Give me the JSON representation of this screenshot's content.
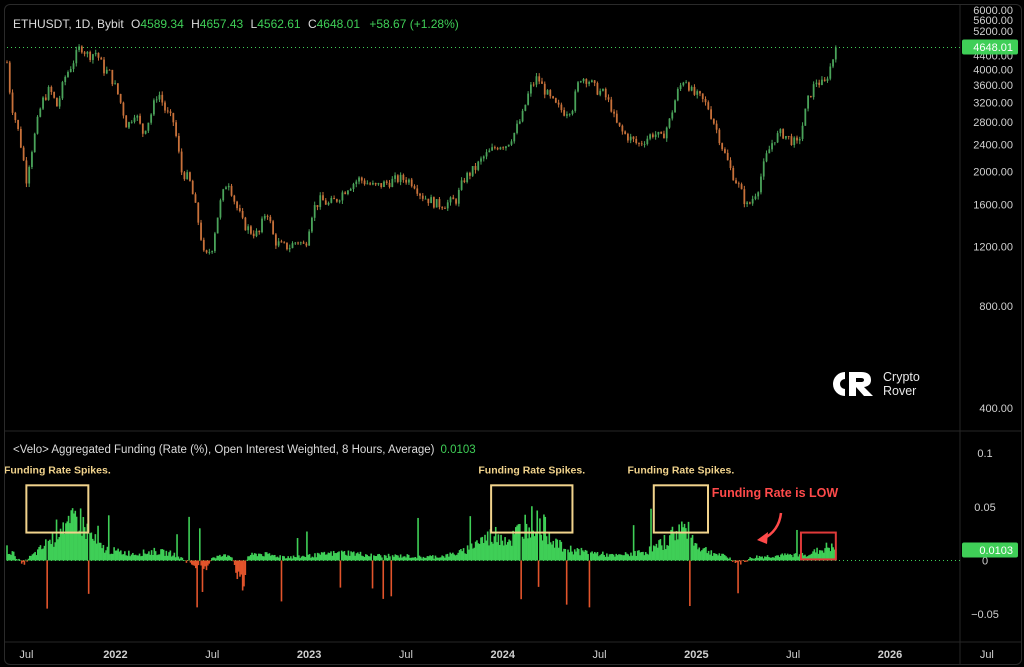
{
  "header": {
    "symbol": "ETHUSDT, 1D, Bybit",
    "o_label": "O",
    "o": "4589.34",
    "h_label": "H",
    "h": "4657.43",
    "l_label": "L",
    "l": "4562.61",
    "c_label": "C",
    "c": "4648.01",
    "change": "+58.67 (+1.28%)"
  },
  "indicator": {
    "title": "<Velo> Aggregated Funding (Rate (%), Open Interest Weighted, 8 Hours, Average)",
    "value": "0.0103"
  },
  "brand": {
    "line1": "Crypto",
    "line2": "Rover"
  },
  "colors": {
    "up": "#3fcf57",
    "down": "#e2542b",
    "annotation_box": "#f1d38c",
    "low_box": "#e03a3a",
    "low_text": "#ff4a4a"
  },
  "chart_data": [
    {
      "type": "candlestick",
      "title": "ETHUSDT, 1D, Bybit",
      "y_ticks": [
        "6000.00",
        "5600.00",
        "5200.00",
        "4800.00",
        "4400.00",
        "4000.00",
        "3600.00",
        "3200.00",
        "2800.00",
        "2400.00",
        "2000.00",
        "1600.00",
        "1200.00",
        "800.00",
        "400.00"
      ],
      "ylim": [
        400,
        6000
      ],
      "last_price": "4648.01",
      "x_ticks": [
        "Jul",
        "2022",
        "Jul",
        "2023",
        "Jul",
        "2024",
        "Jul",
        "2025",
        "Jul",
        "2026",
        "Jul"
      ],
      "price_path": [
        [
          2021.44,
          4200
        ],
        [
          2021.46,
          3200
        ],
        [
          2021.5,
          2600
        ],
        [
          2021.54,
          1900
        ],
        [
          2021.58,
          2500
        ],
        [
          2021.62,
          3200
        ],
        [
          2021.66,
          3500
        ],
        [
          2021.7,
          3100
        ],
        [
          2021.74,
          3800
        ],
        [
          2021.78,
          4200
        ],
        [
          2021.82,
          4700
        ],
        [
          2021.86,
          4400
        ],
        [
          2021.9,
          4500
        ],
        [
          2021.94,
          4000
        ],
        [
          2021.97,
          3900
        ],
        [
          2022.02,
          3300
        ],
        [
          2022.06,
          2700
        ],
        [
          2022.1,
          3000
        ],
        [
          2022.14,
          2600
        ],
        [
          2022.18,
          2900
        ],
        [
          2022.22,
          3450
        ],
        [
          2022.26,
          3000
        ],
        [
          2022.3,
          2800
        ],
        [
          2022.34,
          2000
        ],
        [
          2022.38,
          1900
        ],
        [
          2022.42,
          1500
        ],
        [
          2022.46,
          1100
        ],
        [
          2022.5,
          1200
        ],
        [
          2022.54,
          1600
        ],
        [
          2022.58,
          1900
        ],
        [
          2022.62,
          1600
        ],
        [
          2022.66,
          1400
        ],
        [
          2022.7,
          1330
        ],
        [
          2022.74,
          1300
        ],
        [
          2022.78,
          1550
        ],
        [
          2022.82,
          1250
        ],
        [
          2022.86,
          1200
        ],
        [
          2022.9,
          1200
        ],
        [
          2022.94,
          1250
        ],
        [
          2022.98,
          1200
        ],
        [
          2023.02,
          1550
        ],
        [
          2023.06,
          1650
        ],
        [
          2023.1,
          1600
        ],
        [
          2023.14,
          1650
        ],
        [
          2023.2,
          1800
        ],
        [
          2023.26,
          1900
        ],
        [
          2023.3,
          1850
        ],
        [
          2023.34,
          1800
        ],
        [
          2023.4,
          1850
        ],
        [
          2023.46,
          1900
        ],
        [
          2023.5,
          1900
        ],
        [
          2023.54,
          1850
        ],
        [
          2023.58,
          1700
        ],
        [
          2023.62,
          1650
        ],
        [
          2023.66,
          1600
        ],
        [
          2023.7,
          1600
        ],
        [
          2023.76,
          1650
        ],
        [
          2023.8,
          1900
        ],
        [
          2023.86,
          2050
        ],
        [
          2023.9,
          2200
        ],
        [
          2023.94,
          2300
        ],
        [
          2023.98,
          2400
        ],
        [
          2024.02,
          2400
        ],
        [
          2024.06,
          2600
        ],
        [
          2024.1,
          2900
        ],
        [
          2024.14,
          3500
        ],
        [
          2024.18,
          3800
        ],
        [
          2024.2,
          3600
        ],
        [
          2024.24,
          3300
        ],
        [
          2024.28,
          3100
        ],
        [
          2024.32,
          3000
        ],
        [
          2024.36,
          3100
        ],
        [
          2024.4,
          3800
        ],
        [
          2024.44,
          3750
        ],
        [
          2024.48,
          3500
        ],
        [
          2024.52,
          3400
        ],
        [
          2024.56,
          3100
        ],
        [
          2024.58,
          2800
        ],
        [
          2024.62,
          2600
        ],
        [
          2024.66,
          2500
        ],
        [
          2024.7,
          2400
        ],
        [
          2024.74,
          2500
        ],
        [
          2024.78,
          2600
        ],
        [
          2024.82,
          2500
        ],
        [
          2024.86,
          2800
        ],
        [
          2024.9,
          3400
        ],
        [
          2024.94,
          3800
        ],
        [
          2024.98,
          3400
        ],
        [
          2025.02,
          3300
        ],
        [
          2025.06,
          3100
        ],
        [
          2025.1,
          2700
        ],
        [
          2025.14,
          2300
        ],
        [
          2025.18,
          2000
        ],
        [
          2025.22,
          1800
        ],
        [
          2025.26,
          1580
        ],
        [
          2025.28,
          1620
        ],
        [
          2025.32,
          1800
        ],
        [
          2025.36,
          2200
        ],
        [
          2025.4,
          2500
        ],
        [
          2025.44,
          2600
        ],
        [
          2025.48,
          2500
        ],
        [
          2025.52,
          2400
        ],
        [
          2025.54,
          2600
        ],
        [
          2025.58,
          3300
        ],
        [
          2025.62,
          3700
        ],
        [
          2025.66,
          3600
        ],
        [
          2025.7,
          4200
        ],
        [
          2025.72,
          4648
        ]
      ]
    },
    {
      "type": "bar",
      "title": "<Velo> Aggregated Funding (Rate (%), Open Interest Weighted, 8 Hours, Average)",
      "y_ticks": [
        "0.1",
        "0.05",
        "0",
        "−0.05"
      ],
      "ylim": [
        -0.075,
        0.115
      ],
      "last_value": "0.0103",
      "funding_path": [
        [
          2021.44,
          0.01
        ],
        [
          2021.48,
          0.005
        ],
        [
          2021.52,
          -0.004
        ],
        [
          2021.56,
          0.003
        ],
        [
          2021.6,
          0.008
        ],
        [
          2021.64,
          0.014
        ],
        [
          2021.68,
          0.02
        ],
        [
          2021.72,
          0.035
        ],
        [
          2021.76,
          0.028
        ],
        [
          2021.8,
          0.04
        ],
        [
          2021.84,
          0.03
        ],
        [
          2021.88,
          0.02
        ],
        [
          2021.92,
          0.012
        ],
        [
          2021.96,
          0.01
        ],
        [
          2022.0,
          0.008
        ],
        [
          2022.1,
          0.006
        ],
        [
          2022.2,
          0.008
        ],
        [
          2022.3,
          0.006
        ],
        [
          2022.4,
          -0.004
        ],
        [
          2022.46,
          -0.01
        ],
        [
          2022.5,
          0.003
        ],
        [
          2022.6,
          0.005
        ],
        [
          2022.64,
          -0.02
        ],
        [
          2022.66,
          -0.03
        ],
        [
          2022.68,
          0.004
        ],
        [
          2022.74,
          0.006
        ],
        [
          2022.84,
          0.004
        ],
        [
          2022.92,
          0.003
        ],
        [
          2023.0,
          0.004
        ],
        [
          2023.1,
          0.006
        ],
        [
          2023.2,
          0.007
        ],
        [
          2023.3,
          0.005
        ],
        [
          2023.4,
          0.004
        ],
        [
          2023.5,
          0.004
        ],
        [
          2023.6,
          0.003
        ],
        [
          2023.7,
          0.004
        ],
        [
          2023.8,
          0.008
        ],
        [
          2023.86,
          0.016
        ],
        [
          2023.92,
          0.02
        ],
        [
          2023.98,
          0.024
        ],
        [
          2024.04,
          0.018
        ],
        [
          2024.1,
          0.03
        ],
        [
          2024.14,
          0.036
        ],
        [
          2024.18,
          0.032
        ],
        [
          2024.22,
          0.028
        ],
        [
          2024.26,
          0.02
        ],
        [
          2024.3,
          0.012
        ],
        [
          2024.4,
          0.008
        ],
        [
          2024.5,
          0.006
        ],
        [
          2024.58,
          0.004
        ],
        [
          2024.66,
          0.006
        ],
        [
          2024.74,
          0.008
        ],
        [
          2024.8,
          0.012
        ],
        [
          2024.86,
          0.02
        ],
        [
          2024.92,
          0.03
        ],
        [
          2024.96,
          0.024
        ],
        [
          2025.0,
          0.014
        ],
        [
          2025.04,
          0.01
        ],
        [
          2025.1,
          0.006
        ],
        [
          2025.16,
          0.003
        ],
        [
          2025.22,
          -0.003
        ],
        [
          2025.3,
          0.003
        ],
        [
          2025.4,
          0.004
        ],
        [
          2025.5,
          0.005
        ],
        [
          2025.58,
          0.006
        ],
        [
          2025.64,
          0.009
        ],
        [
          2025.68,
          0.012
        ],
        [
          2025.72,
          0.0103
        ]
      ],
      "annotations": [
        "Funding Rate Spikes.",
        "Funding Rate Spikes.",
        "Funding Rate Spikes.",
        "Funding Rate is LOW"
      ]
    }
  ]
}
